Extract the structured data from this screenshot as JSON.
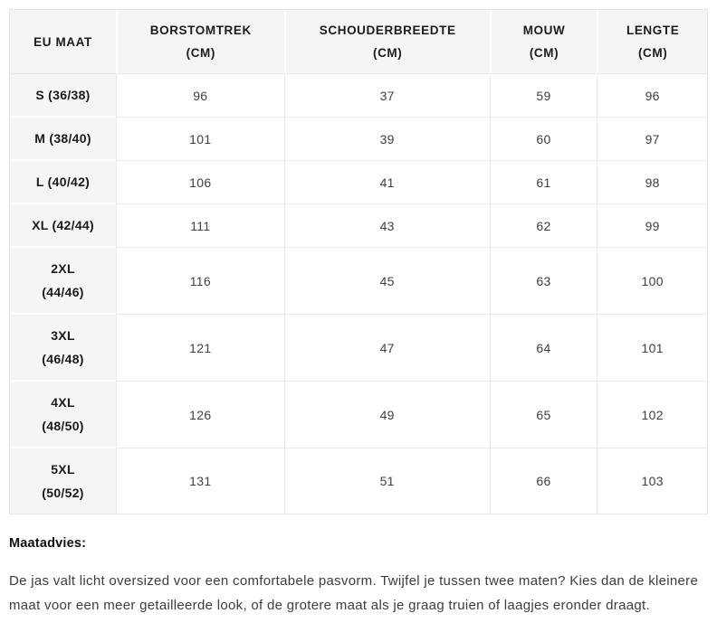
{
  "table": {
    "headers": [
      {
        "line1": "EU MAAT",
        "line2": ""
      },
      {
        "line1": "BORSTOMTREK",
        "line2": "(CM)"
      },
      {
        "line1": "SCHOUDERBREEDTE",
        "line2": "(CM)"
      },
      {
        "line1": "MOUW",
        "line2": "(CM)"
      },
      {
        "line1": "LENGTE",
        "line2": "(CM)"
      }
    ],
    "rows": [
      {
        "size": "S (36/38)",
        "size2": "",
        "borstomtrek": "96",
        "schouderbreedte": "37",
        "mouw": "59",
        "lengte": "96"
      },
      {
        "size": "M (38/40)",
        "size2": "",
        "borstomtrek": "101",
        "schouderbreedte": "39",
        "mouw": "60",
        "lengte": "97"
      },
      {
        "size": "L (40/42)",
        "size2": "",
        "borstomtrek": "106",
        "schouderbreedte": "41",
        "mouw": "61",
        "lengte": "98"
      },
      {
        "size": "XL (42/44)",
        "size2": "",
        "borstomtrek": "111",
        "schouderbreedte": "43",
        "mouw": "62",
        "lengte": "99"
      },
      {
        "size": "2XL",
        "size2": "(44/46)",
        "borstomtrek": "116",
        "schouderbreedte": "45",
        "mouw": "63",
        "lengte": "100"
      },
      {
        "size": "3XL",
        "size2": "(46/48)",
        "borstomtrek": "121",
        "schouderbreedte": "47",
        "mouw": "64",
        "lengte": "101"
      },
      {
        "size": "4XL",
        "size2": "(48/50)",
        "borstomtrek": "126",
        "schouderbreedte": "49",
        "mouw": "65",
        "lengte": "102"
      },
      {
        "size": "5XL",
        "size2": "(50/52)",
        "borstomtrek": "131",
        "schouderbreedte": "51",
        "mouw": "66",
        "lengte": "103"
      }
    ]
  },
  "advice": {
    "heading": "Maatadvies:",
    "text": "De jas valt licht oversized voor een comfortabele pasvorm. Twijfel je tussen twee maten? Kies dan de kleinere maat voor een meer getailleerde look, of de grotere maat als je graag truien of laagjes eronder draagt."
  },
  "colors": {
    "header_bg": "#f5f5f5",
    "border": "#e9e9e9",
    "label_text": "#1a1a1a",
    "cell_text": "#404040"
  }
}
